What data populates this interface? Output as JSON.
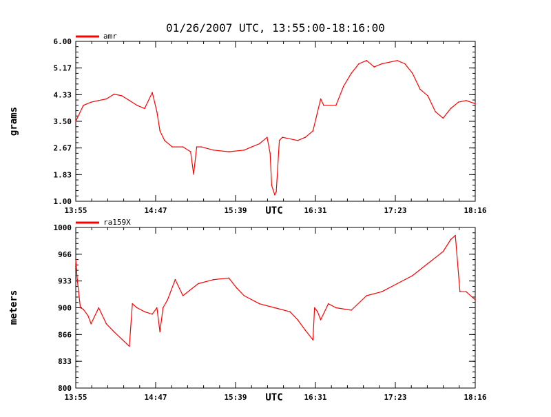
{
  "title": "01/26/2007  UTC, 13:55:00-18:16:00",
  "series_color": "#ff0000",
  "chart_data": [
    {
      "type": "line",
      "title": "01/26/2007  UTC, 13:55:00-18:16:00",
      "xlabel": "UTC",
      "ylabel": "grams",
      "xlim": [
        "13:55",
        "18:16"
      ],
      "ylim": [
        1.0,
        6.0
      ],
      "x_tick_labels": [
        "13:55",
        "14:47",
        "15:39",
        "16:31",
        "17:23",
        "18:16"
      ],
      "y_tick_labels": [
        "1.00",
        "1.83",
        "2.67",
        "3.50",
        "4.33",
        "5.17",
        "6.00"
      ],
      "grid": false,
      "legend_position": "top-left",
      "series": [
        {
          "name": "amr",
          "x": [
            "13:55",
            "14:00",
            "14:05",
            "14:10",
            "14:15",
            "14:20",
            "14:25",
            "14:30",
            "14:35",
            "14:40",
            "14:45",
            "14:48",
            "14:50",
            "14:53",
            "14:58",
            "15:05",
            "15:10",
            "15:12",
            "15:14",
            "15:17",
            "15:25",
            "15:35",
            "15:45",
            "15:50",
            "15:55",
            "16:00",
            "16:02",
            "16:03",
            "16:05",
            "16:06",
            "16:08",
            "16:10",
            "16:20",
            "16:25",
            "16:30",
            "16:35",
            "16:37",
            "16:45",
            "16:50",
            "16:55",
            "17:00",
            "17:05",
            "17:10",
            "17:15",
            "17:20",
            "17:25",
            "17:30",
            "17:35",
            "17:40",
            "17:45",
            "17:50",
            "17:55",
            "18:00",
            "18:05",
            "18:10",
            "18:16"
          ],
          "y": [
            3.5,
            4.0,
            4.1,
            4.15,
            4.2,
            4.35,
            4.3,
            4.15,
            4.0,
            3.9,
            4.4,
            3.8,
            3.2,
            2.9,
            2.7,
            2.7,
            2.55,
            1.85,
            2.7,
            2.7,
            2.6,
            2.55,
            2.6,
            2.7,
            2.8,
            3.0,
            2.5,
            1.5,
            1.2,
            1.3,
            2.9,
            3.0,
            2.9,
            3.0,
            3.2,
            4.2,
            4.0,
            4.0,
            4.6,
            5.0,
            5.3,
            5.4,
            5.2,
            5.3,
            5.35,
            5.4,
            5.3,
            5.0,
            4.5,
            4.3,
            3.8,
            3.6,
            3.9,
            4.1,
            4.15,
            4.05
          ]
        }
      ]
    },
    {
      "type": "line",
      "xlabel": "UTC",
      "ylabel": "meters",
      "xlim": [
        "13:55",
        "18:16"
      ],
      "ylim": [
        800,
        1000
      ],
      "x_tick_labels": [
        "13:55",
        "14:47",
        "15:39",
        "16:31",
        "17:23",
        "18:16"
      ],
      "y_tick_labels": [
        "800",
        "833",
        "866",
        "900",
        "933",
        "966",
        "1000"
      ],
      "grid": false,
      "legend_position": "top-left",
      "series": [
        {
          "name": "ra159X",
          "x": [
            "13:55",
            "13:56",
            "13:58",
            "14:00",
            "14:03",
            "14:05",
            "14:10",
            "14:15",
            "14:20",
            "14:30",
            "14:32",
            "14:35",
            "14:40",
            "14:45",
            "14:48",
            "14:50",
            "14:52",
            "14:55",
            "15:00",
            "15:05",
            "15:15",
            "15:25",
            "15:35",
            "15:40",
            "15:45",
            "15:55",
            "16:05",
            "16:15",
            "16:20",
            "16:25",
            "16:30",
            "16:31",
            "16:33",
            "16:35",
            "16:40",
            "16:45",
            "16:55",
            "17:05",
            "17:15",
            "17:25",
            "17:35",
            "17:45",
            "17:55",
            "18:00",
            "18:03",
            "18:06",
            "18:10",
            "18:16"
          ],
          "y": [
            960,
            935,
            900,
            898,
            890,
            880,
            900,
            880,
            870,
            852,
            905,
            900,
            895,
            892,
            900,
            870,
            900,
            910,
            935,
            915,
            930,
            935,
            937,
            925,
            915,
            905,
            900,
            895,
            885,
            872,
            860,
            900,
            895,
            885,
            905,
            900,
            897,
            915,
            920,
            930,
            940,
            955,
            970,
            985,
            990,
            920,
            920,
            910
          ]
        }
      ]
    }
  ]
}
